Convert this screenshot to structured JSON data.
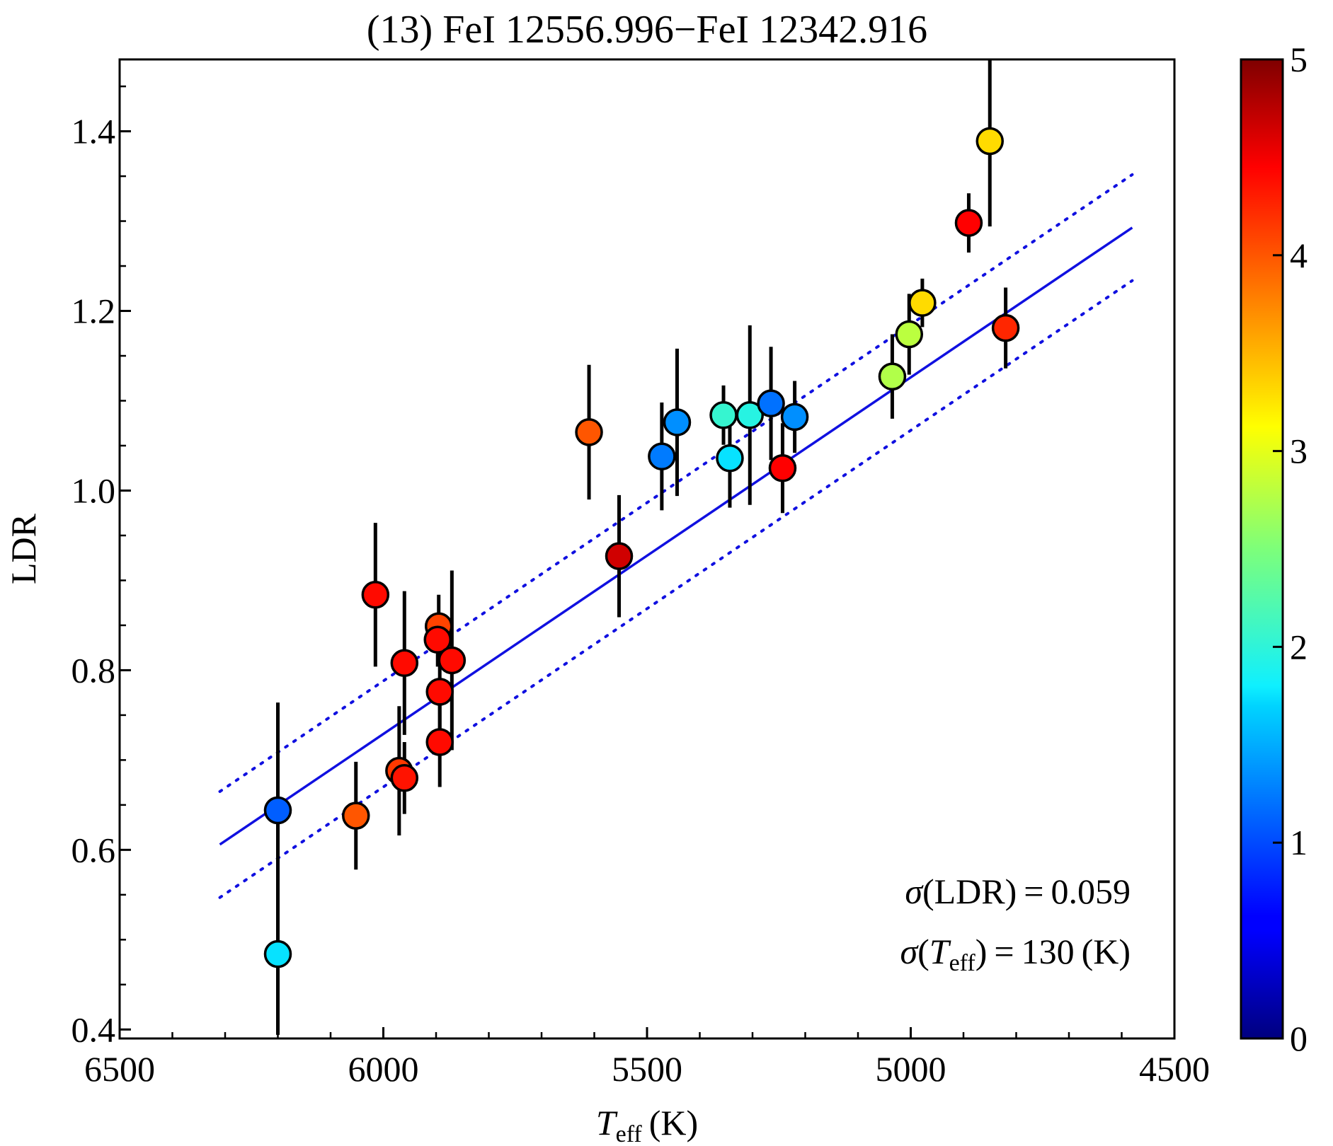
{
  "chart_data": {
    "type": "scatter",
    "title": "(13) FeI 12556.996−FeI 12342.916",
    "xlabel_main": "T",
    "xlabel_sub": "eff",
    "xlabel_unit": "(K)",
    "ylabel": "LDR",
    "xlim": [
      6500,
      4500
    ],
    "ylim": [
      0.39,
      1.48
    ],
    "x_ticks": [
      6500,
      6000,
      5500,
      5000,
      4500
    ],
    "x_tick_labels": [
      "6500",
      "6000",
      "5500",
      "5000",
      "4500"
    ],
    "y_ticks": [
      0.4,
      0.6,
      0.8,
      1.0,
      1.2,
      1.4
    ],
    "y_tick_labels": [
      "0.4",
      "0.6",
      "0.8",
      "1.0",
      "1.2",
      "1.4"
    ],
    "colorbar": {
      "range": [
        0,
        5
      ],
      "ticks": [
        0,
        1,
        2,
        3,
        4,
        5
      ],
      "tick_labels": [
        "0",
        "1",
        "2",
        "3",
        "4",
        "5"
      ],
      "colormap": "jet"
    },
    "fit": {
      "x_range": [
        6310,
        4580
      ],
      "slope": -0.000397,
      "intercept": 3.111,
      "offset": 0.059,
      "line_color": "#1010e0"
    },
    "annotations": {
      "sigma_ldr": {
        "prefix": "σ",
        "label": "(LDR)",
        "equals": "=",
        "value": "0.059"
      },
      "sigma_teff": {
        "prefix": "σ",
        "open": "(",
        "t": "T",
        "sub": "eff",
        "close": ")",
        "equals": "=",
        "value": "130",
        "unit": "(K)"
      }
    },
    "points": [
      {
        "x": 6200,
        "y": 0.644,
        "err": 0.12,
        "c": 1.1
      },
      {
        "x": 6200,
        "y": 0.484,
        "err": 0.09,
        "c": 1.75
      },
      {
        "x": 6052,
        "y": 0.638,
        "err": 0.06,
        "c": 4.0
      },
      {
        "x": 6015,
        "y": 0.884,
        "err": 0.08,
        "c": 4.4
      },
      {
        "x": 5970,
        "y": 0.688,
        "err": 0.072,
        "c": 4.15
      },
      {
        "x": 5960,
        "y": 0.68,
        "err": 0.04,
        "c": 4.35
      },
      {
        "x": 5960,
        "y": 0.808,
        "err": 0.08,
        "c": 4.4
      },
      {
        "x": 5895,
        "y": 0.849,
        "err": 0.035,
        "c": 4.1
      },
      {
        "x": 5897,
        "y": 0.834,
        "err": 0.03,
        "c": 4.4
      },
      {
        "x": 5893,
        "y": 0.776,
        "err": 0.06,
        "c": 4.4
      },
      {
        "x": 5893,
        "y": 0.72,
        "err": 0.05,
        "c": 4.4
      },
      {
        "x": 5870,
        "y": 0.811,
        "err": 0.1,
        "c": 4.4
      },
      {
        "x": 5610,
        "y": 1.065,
        "err": 0.075,
        "c": 4.0
      },
      {
        "x": 5553,
        "y": 0.927,
        "err": 0.068,
        "c": 4.65
      },
      {
        "x": 5472,
        "y": 1.038,
        "err": 0.06,
        "c": 1.25
      },
      {
        "x": 5443,
        "y": 1.076,
        "err": 0.082,
        "c": 1.35
      },
      {
        "x": 5355,
        "y": 1.084,
        "err": 0.033,
        "c": 2.05
      },
      {
        "x": 5343,
        "y": 1.036,
        "err": 0.055,
        "c": 1.75
      },
      {
        "x": 5305,
        "y": 1.084,
        "err": 0.1,
        "c": 1.95
      },
      {
        "x": 5265,
        "y": 1.097,
        "err": 0.063,
        "c": 1.2
      },
      {
        "x": 5243,
        "y": 1.025,
        "err": 0.05,
        "c": 4.45
      },
      {
        "x": 5220,
        "y": 1.082,
        "err": 0.04,
        "c": 1.35
      },
      {
        "x": 5035,
        "y": 1.127,
        "err": 0.047,
        "c": 2.75
      },
      {
        "x": 5003,
        "y": 1.174,
        "err": 0.045,
        "c": 2.8
      },
      {
        "x": 4978,
        "y": 1.209,
        "err": 0.027,
        "c": 3.3
      },
      {
        "x": 4890,
        "y": 1.298,
        "err": 0.033,
        "c": 4.45
      },
      {
        "x": 4850,
        "y": 1.389,
        "err": 0.095,
        "c": 3.3
      },
      {
        "x": 4820,
        "y": 1.181,
        "err": 0.045,
        "c": 4.25
      }
    ]
  }
}
